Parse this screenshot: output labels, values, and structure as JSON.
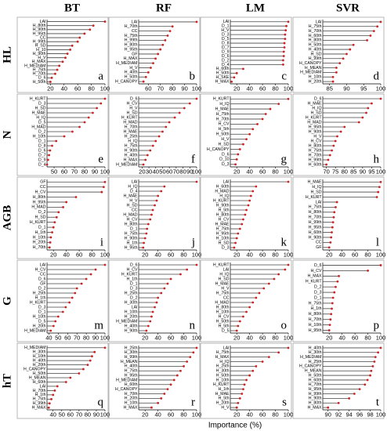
{
  "column_labels": [
    "BT",
    "RF",
    "LM",
    "SVR"
  ],
  "row_labels": [
    "HL",
    "N",
    "AGB",
    "G",
    "hT"
  ],
  "x_label": "Importance (%)",
  "chart_data": [
    {
      "type": "lollipop",
      "panel": "a",
      "categories": [
        "LAI",
        "H_80th",
        "H_90th",
        "H_95th",
        "CC",
        "H_99th",
        "H_SD",
        "H_10",
        "H_90th",
        "H_V",
        "H_MAX",
        "H_MEDIAM",
        "H_75th",
        "H_70th",
        "D_6",
        "H_50th"
      ],
      "values": [
        100,
        83,
        78,
        70,
        63,
        60,
        52,
        49,
        45,
        42,
        38,
        33,
        30,
        27,
        22,
        20
      ],
      "xlim": [
        15,
        100
      ],
      "xticks": [
        20,
        40,
        60,
        80,
        100
      ],
      "color": "#cc2222",
      "stem_color": "#444444"
    },
    {
      "type": "lollipop",
      "panel": "b",
      "categories": [
        "LAI",
        "H_70th",
        "CC",
        "H_75th",
        "H_99th",
        "H_80th",
        "H_95th",
        "GF",
        "H_MAX",
        "H_MEDIAM",
        "H_V",
        "H_40th",
        "H_50th",
        "H_CANOPY"
      ],
      "values": [
        100,
        80,
        78,
        76,
        74,
        72,
        70,
        68,
        66,
        64,
        62,
        60,
        58,
        56
      ],
      "xlim": [
        52,
        100
      ],
      "xticks": [
        60,
        70,
        80,
        90,
        100
      ],
      "color": "#cc2222",
      "stem_color": "#444444"
    },
    {
      "type": "lollipop",
      "panel": "c",
      "categories": [
        "LAI",
        "D_1",
        "H_V",
        "D_3",
        "D_5",
        "D_8",
        "D_7",
        "D_9",
        "D_6",
        "D_2",
        "D_4",
        "H_60th",
        "H_50th",
        "H_SKE",
        "H_MAX"
      ],
      "values": [
        100,
        97,
        96,
        95,
        95,
        94,
        94,
        93,
        93,
        92,
        92,
        30,
        20,
        16,
        12
      ],
      "xlim": [
        10,
        100
      ],
      "xticks": [
        20,
        40,
        60,
        80,
        100
      ],
      "color": "#cc2222",
      "stem_color": "#444444"
    },
    {
      "type": "lollipop",
      "panel": "d",
      "categories": [
        "LAI",
        "H_75th",
        "H_70th",
        "H_60th",
        "H_80th",
        "H_50th",
        "H_40th",
        "H_SD",
        "H_99th",
        "H_CANOPY",
        "H_MEAN",
        "H_MEDIAM",
        "H_10th",
        "H_20th"
      ],
      "values": [
        100,
        99,
        98,
        97,
        96,
        92,
        91,
        90,
        89,
        88,
        87,
        87,
        86,
        86
      ],
      "xlim": [
        83,
        100
      ],
      "xticks": [
        85,
        90,
        95,
        100
      ],
      "color": "#cc2222",
      "stem_color": "#444444"
    },
    {
      "type": "lollipop",
      "panel": "e",
      "categories": [
        "H_KURT",
        "D_3",
        "H_SD",
        "H_MAE",
        "H_IQ",
        "D_5",
        "H_MAD",
        "D_2",
        "H_10th",
        "D_1",
        "D_8",
        "D_6",
        "D_7",
        "D_9",
        "D_4"
      ],
      "values": [
        100,
        96,
        92,
        88,
        84,
        80,
        75,
        68,
        60,
        52,
        48,
        46,
        45,
        44,
        43
      ],
      "xlim": [
        43,
        100
      ],
      "xticks": [
        50,
        60,
        70,
        80,
        90,
        100
      ],
      "color": "#cc2222",
      "stem_color": "#444444"
    },
    {
      "type": "lollipop",
      "panel": "f",
      "categories": [
        "D_6",
        "H_CV",
        "H_V",
        "H_SD",
        "H_KURT",
        "H_MAD",
        "H_70th",
        "H_MAE",
        "H_25th",
        "H_IQ",
        "H_75th",
        "H_90th",
        "H_40th",
        "H_MAX",
        "H_MEDIAM"
      ],
      "values": [
        100,
        90,
        82,
        75,
        68,
        60,
        55,
        50,
        45,
        40,
        36,
        32,
        28,
        25,
        22
      ],
      "xlim": [
        15,
        100
      ],
      "xticks": [
        20,
        30,
        40,
        50,
        60,
        70,
        80,
        90,
        100
      ],
      "color": "#cc2222",
      "stem_color": "#444444"
    },
    {
      "type": "lollipop",
      "panel": "g",
      "categories": [
        "H_KURT",
        "H_IQ",
        "H_MAE",
        "H_75th",
        "H_70th",
        "H_CV",
        "H_5th",
        "H_50th",
        "H_V",
        "H_SD",
        "H_CANOPY",
        "D_6",
        "D_10",
        "D_3"
      ],
      "values": [
        100,
        85,
        72,
        65,
        60,
        52,
        45,
        40,
        35,
        30,
        25,
        22,
        20,
        18
      ],
      "xlim": [
        10,
        100
      ],
      "xticks": [
        20,
        40,
        60,
        80,
        100
      ],
      "color": "#cc2222",
      "stem_color": "#444444"
    },
    {
      "type": "lollipop",
      "panel": "h",
      "categories": [
        "D_6",
        "H_MAE",
        "H_IQ",
        "H_SD",
        "H_KURT",
        "H_MAD",
        "H_95th",
        "H_90th",
        "H_V",
        "H_CV",
        "H_80th",
        "H_75th",
        "H_70th",
        "H_99th",
        "H_60th"
      ],
      "values": [
        100,
        95,
        93,
        92,
        90,
        88,
        80,
        78,
        76,
        75,
        74,
        73,
        72,
        71,
        70
      ],
      "xlim": [
        68,
        100
      ],
      "xticks": [
        70,
        75,
        80,
        85,
        90,
        95,
        100
      ],
      "color": "#cc2222",
      "stem_color": "#444444"
    },
    {
      "type": "lollipop",
      "panel": "i",
      "categories": [
        "GF",
        "CC",
        "H_CV",
        "H_80th",
        "H_95th",
        "H_MAD",
        "D_2",
        "H_SD",
        "H_KURT",
        "D_1",
        "H_1th",
        "H_10th",
        "H_20th",
        "H_70th"
      ],
      "values": [
        100,
        98,
        95,
        55,
        40,
        35,
        28,
        25,
        22,
        20,
        18,
        16,
        15,
        14
      ],
      "xlim": [
        10,
        100
      ],
      "xticks": [
        20,
        40,
        60,
        80,
        100
      ],
      "color": "#cc2222",
      "stem_color": "#444444"
    },
    {
      "type": "lollipop",
      "panel": "j",
      "categories": [
        "LAI",
        "H_IQ",
        "D_4",
        "H_MAE",
        "H_V",
        "H_SD",
        "CC",
        "H_MAD",
        "H_CV",
        "H_80th",
        "D_1",
        "H_75th",
        "H_90th",
        "H_1th",
        "H_95th"
      ],
      "values": [
        100,
        50,
        45,
        40,
        38,
        35,
        32,
        30,
        28,
        25,
        23,
        22,
        20,
        18,
        17
      ],
      "xlim": [
        10,
        100
      ],
      "xticks": [
        20,
        40,
        60,
        80,
        100
      ],
      "color": "#cc2222",
      "stem_color": "#444444"
    },
    {
      "type": "lollipop",
      "panel": "k",
      "categories": [
        "LAI",
        "H_60th",
        "H_MAD",
        "H_IQ",
        "H_KURT",
        "H_90th",
        "H_5th",
        "H_80th",
        "H_CV",
        "H_MAE",
        "H_75th",
        "H_95th",
        "H_10th",
        "H_SD",
        "D_3"
      ],
      "values": [
        100,
        50,
        45,
        42,
        40,
        38,
        35,
        33,
        30,
        28,
        25,
        22,
        20,
        18,
        16
      ],
      "xlim": [
        10,
        100
      ],
      "xticks": [
        20,
        40,
        60,
        80,
        100
      ],
      "color": "#cc2222",
      "stem_color": "#444444"
    },
    {
      "type": "lollipop",
      "panel": "l",
      "categories": [
        "H_MAE",
        "H_IQ",
        "H_SD",
        "H_KURT",
        "LAI",
        "H_75th",
        "H_80th",
        "H_70th",
        "H_99th",
        "H_95th",
        "H_60th",
        "H_90th",
        "CC",
        "GF"
      ],
      "values": [
        100,
        98,
        96,
        94,
        32,
        30,
        28,
        27,
        26,
        25,
        24,
        23,
        22,
        20
      ],
      "xlim": [
        10,
        100
      ],
      "xticks": [
        20,
        40,
        60,
        80,
        100
      ],
      "color": "#cc2222",
      "stem_color": "#444444"
    },
    {
      "type": "lollipop",
      "panel": "m",
      "categories": [
        "LAI",
        "H_CV",
        "CC",
        "D_6",
        "GF",
        "D_2",
        "H_25th",
        "H_1th",
        "H_KURT",
        "D_3",
        "D_1",
        "H_10th",
        "D_5",
        "H_20th",
        "H_MEDIAM"
      ],
      "values": [
        100,
        90,
        85,
        80,
        75,
        70,
        68,
        65,
        62,
        58,
        55,
        50,
        47,
        45,
        42
      ],
      "xlim": [
        38,
        100
      ],
      "xticks": [
        40,
        50,
        60,
        70,
        80,
        90,
        100
      ],
      "color": "#cc2222",
      "stem_color": "#444444"
    },
    {
      "type": "lollipop",
      "panel": "n",
      "categories": [
        "D_6",
        "H_CV",
        "H_KURT",
        "H_1th",
        "D_1",
        "D_3",
        "H_25th",
        "D_2",
        "H_30th",
        "LAI",
        "H_10th",
        "H_20th",
        "H_MEDIAM",
        "H_40th",
        "H_90th"
      ],
      "values": [
        100,
        85,
        75,
        60,
        55,
        50,
        45,
        40,
        38,
        35,
        32,
        30,
        28,
        25,
        22
      ],
      "xlim": [
        10,
        100
      ],
      "xticks": [
        20,
        40,
        60,
        80,
        100
      ],
      "color": "#cc2222",
      "stem_color": "#444444"
    },
    {
      "type": "lollipop",
      "panel": "o",
      "categories": [
        "H_KURT",
        "LAI",
        "H_IQ",
        "H_SD",
        "H_MAE",
        "H_V",
        "H_75th",
        "CC",
        "H_MAD",
        "H_80th",
        "H_10th",
        "H_CV",
        "H_50th",
        "H_5th",
        "D_5"
      ],
      "values": [
        100,
        95,
        85,
        78,
        70,
        62,
        55,
        50,
        45,
        40,
        35,
        30,
        25,
        22,
        20
      ],
      "xlim": [
        10,
        100
      ],
      "xticks": [
        20,
        40,
        60,
        80,
        100
      ],
      "color": "#cc2222",
      "stem_color": "#444444"
    },
    {
      "type": "lollipop",
      "panel": "p",
      "categories": [
        "D_6",
        "H_CV",
        "H_MAX",
        "H_KURT",
        "D_2",
        "D_3",
        "D_1",
        "H_75th",
        "H_1th",
        "H_80th",
        "H_70th",
        "H_10th",
        "H_95th"
      ],
      "values": [
        100,
        80,
        35,
        33,
        30,
        28,
        26,
        25,
        24,
        23,
        22,
        21,
        20
      ],
      "xlim": [
        10,
        100
      ],
      "xticks": [
        20,
        40,
        60,
        80,
        100
      ],
      "color": "#cc2222",
      "stem_color": "#444444"
    },
    {
      "type": "lollipop",
      "panel": "q",
      "categories": [
        "H_MEDIAM",
        "H_30th",
        "H_10th",
        "H_40th",
        "H_20th",
        "H_CANOPY",
        "H_50th",
        "H_MEAN",
        "H_60th",
        "LAI",
        "H_70th",
        "H_1th",
        "H_75th",
        "H_99th",
        "H_MAX"
      ],
      "values": [
        100,
        88,
        85,
        83,
        80,
        75,
        70,
        60,
        55,
        45,
        42,
        40,
        38,
        36,
        35
      ],
      "xlim": [
        33,
        100
      ],
      "xticks": [
        40,
        50,
        60,
        70,
        80,
        90,
        100
      ],
      "color": "#cc2222",
      "stem_color": "#444444"
    },
    {
      "type": "lollipop",
      "panel": "r",
      "categories": [
        "H_25th",
        "H_30th",
        "H_99th",
        "H_MEAN",
        "H_40th",
        "H_75th",
        "H_95th",
        "H_MEDIAM",
        "H_60th",
        "H_CANOPY",
        "H_70th",
        "H_20th",
        "H_10th",
        "H_MAX"
      ],
      "values": [
        100,
        95,
        90,
        85,
        80,
        75,
        70,
        65,
        60,
        55,
        50,
        45,
        40,
        30
      ],
      "xlim": [
        10,
        100
      ],
      "xticks": [
        20,
        40,
        60,
        80,
        100
      ],
      "color": "#cc2222",
      "stem_color": "#444444"
    },
    {
      "type": "lollipop",
      "panel": "s",
      "categories": [
        "LAI",
        "H_75th",
        "H_MAX",
        "H_IQ",
        "H_25th",
        "H_30th",
        "H_50th",
        "H_10th",
        "H_KURT",
        "H_1th",
        "H_MAE",
        "H_5th",
        "H_20th",
        "H_V"
      ],
      "values": [
        100,
        85,
        70,
        60,
        50,
        45,
        40,
        35,
        32,
        30,
        28,
        25,
        22,
        20
      ],
      "xlim": [
        10,
        100
      ],
      "xticks": [
        20,
        40,
        60,
        80,
        100
      ],
      "color": "#cc2222",
      "stem_color": "#444444"
    },
    {
      "type": "lollipop",
      "panel": "t",
      "categories": [
        "H_40th",
        "H_30th",
        "H_MEDIAM",
        "H_25th",
        "H_CANOPY",
        "H_MEAN",
        "H_50th",
        "H_60th",
        "H_70th",
        "H_95th",
        "H_99th",
        "H_90th",
        "H_80th",
        "H_MAX"
      ],
      "values": [
        100,
        99.5,
        99,
        98.8,
        98.5,
        98.2,
        98,
        97.5,
        97,
        96,
        95,
        94,
        92,
        90
      ],
      "xlim": [
        89,
        100
      ],
      "xticks": [
        90,
        92,
        94,
        96,
        98,
        100
      ],
      "color": "#cc2222",
      "stem_color": "#444444"
    }
  ]
}
